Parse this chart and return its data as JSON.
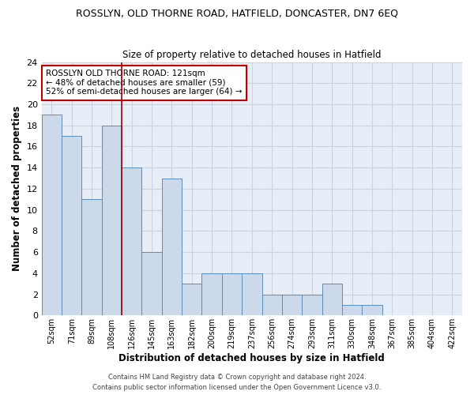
{
  "title1": "ROSSLYN, OLD THORNE ROAD, HATFIELD, DONCASTER, DN7 6EQ",
  "title2": "Size of property relative to detached houses in Hatfield",
  "xlabel": "Distribution of detached houses by size in Hatfield",
  "ylabel": "Number of detached properties",
  "categories": [
    "52sqm",
    "71sqm",
    "89sqm",
    "108sqm",
    "126sqm",
    "145sqm",
    "163sqm",
    "182sqm",
    "200sqm",
    "219sqm",
    "237sqm",
    "256sqm",
    "274sqm",
    "293sqm",
    "311sqm",
    "330sqm",
    "348sqm",
    "367sqm",
    "385sqm",
    "404sqm",
    "422sqm"
  ],
  "values": [
    19,
    17,
    11,
    18,
    14,
    6,
    13,
    3,
    4,
    4,
    4,
    2,
    2,
    2,
    3,
    1,
    1,
    0,
    0,
    0,
    0
  ],
  "bar_color": "#ccd9ea",
  "bar_edge_color": "#5b8db8",
  "vline_color": "#a00000",
  "annotation_text": "ROSSLYN OLD THORNE ROAD: 121sqm\n← 48% of detached houses are smaller (59)\n52% of semi-detached houses are larger (64) →",
  "annotation_box_color": "white",
  "annotation_box_edge_color": "#c00000",
  "ylim": [
    0,
    24
  ],
  "yticks": [
    0,
    2,
    4,
    6,
    8,
    10,
    12,
    14,
    16,
    18,
    20,
    22,
    24
  ],
  "grid_color": "#c8d4e4",
  "background_color": "#e8eef8",
  "footer1": "Contains HM Land Registry data © Crown copyright and database right 2024.",
  "footer2": "Contains public sector information licensed under the Open Government Licence v3.0."
}
